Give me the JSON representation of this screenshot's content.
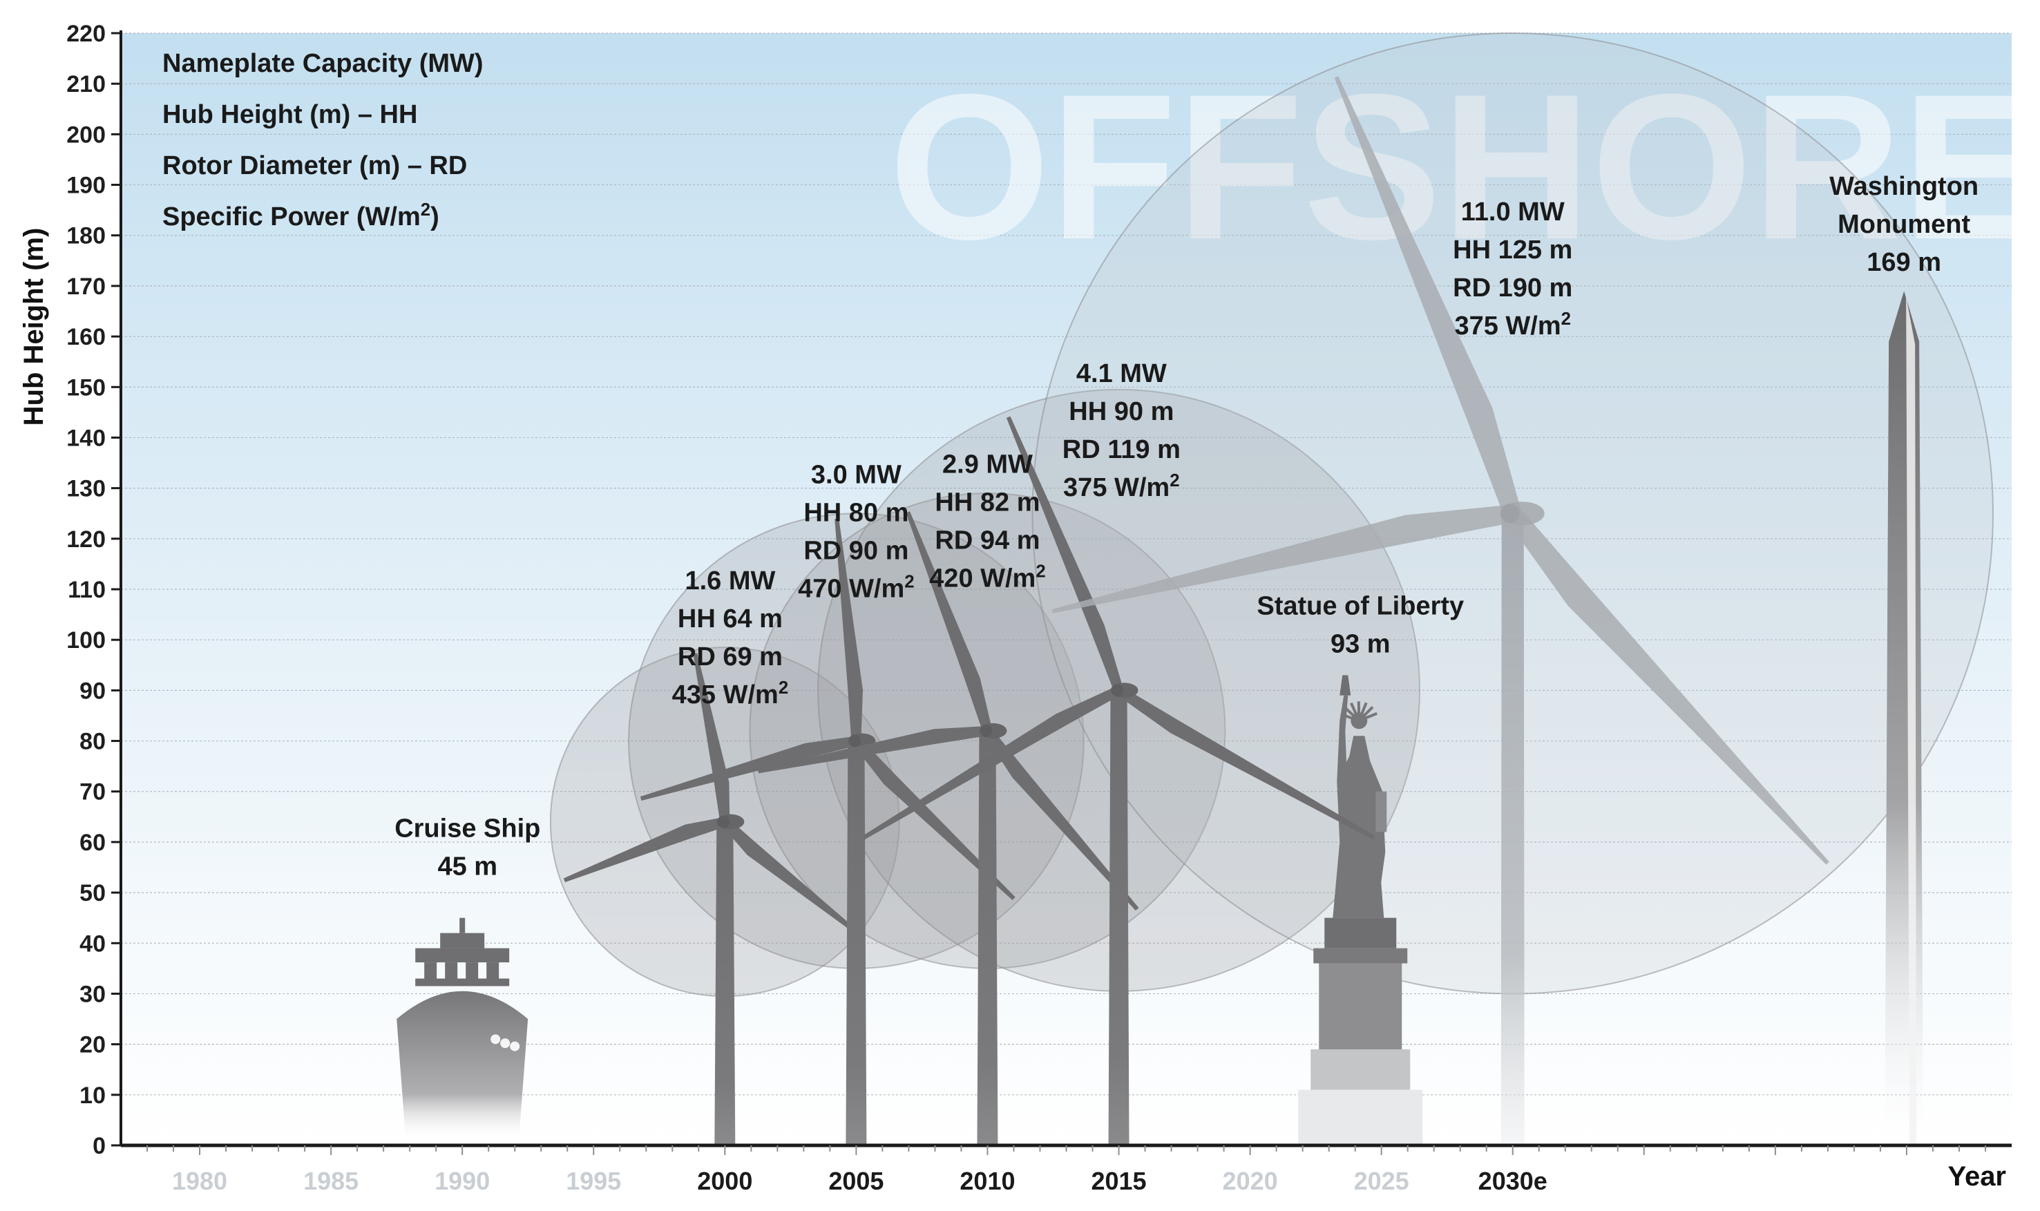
{
  "chart_data": {
    "type": "scatter",
    "ylabel": "Hub Height (m)",
    "xlabel": "Year",
    "ylim": [
      0,
      220
    ],
    "yticks": [
      0,
      10,
      20,
      30,
      40,
      50,
      60,
      70,
      80,
      90,
      100,
      110,
      120,
      130,
      140,
      150,
      160,
      170,
      180,
      190,
      200,
      210,
      220
    ],
    "xlim": [
      1977,
      2049
    ],
    "xticks": [
      {
        "value": 1980,
        "label": "1980",
        "emphasis": false
      },
      {
        "value": 1985,
        "label": "1985",
        "emphasis": false
      },
      {
        "value": 1990,
        "label": "1990",
        "emphasis": false
      },
      {
        "value": 1995,
        "label": "1995",
        "emphasis": false
      },
      {
        "value": 2000,
        "label": "2000",
        "emphasis": true
      },
      {
        "value": 2005,
        "label": "2005",
        "emphasis": true
      },
      {
        "value": 2010,
        "label": "2010",
        "emphasis": true
      },
      {
        "value": 2015,
        "label": "2015",
        "emphasis": true
      },
      {
        "value": 2020,
        "label": "2020",
        "emphasis": false
      },
      {
        "value": 2025,
        "label": "2025",
        "emphasis": false
      },
      {
        "value": 2030,
        "label": "2030e",
        "emphasis": true
      }
    ],
    "grid": true,
    "watermark": "OFFSHORE",
    "legend": {
      "placement": "top-left",
      "lines": [
        "Nameplate Capacity (MW)",
        "Hub Height (m) – HH",
        "Rotor Diameter (m) – RD",
        "Specific Power (W/m2)"
      ]
    },
    "turbines": [
      {
        "year": 2000,
        "hub_height": 64,
        "rotor_diameter": 69,
        "labels": [
          "1.6 MW",
          "HH 64 m",
          "RD 69 m",
          "435 W/m2"
        ],
        "label_anchor": {
          "year": 2000.2,
          "height": 110
        }
      },
      {
        "year": 2005,
        "hub_height": 80,
        "rotor_diameter": 90,
        "labels": [
          "3.0 MW",
          "HH 80 m",
          "RD 90 m",
          "470 W/m2"
        ],
        "label_anchor": {
          "year": 2005.0,
          "height": 131
        }
      },
      {
        "year": 2010,
        "hub_height": 82,
        "rotor_diameter": 94,
        "labels": [
          "2.9 MW",
          "HH 82 m",
          "RD 94 m",
          "420 W/m2"
        ],
        "label_anchor": {
          "year": 2010.0,
          "height": 133
        }
      },
      {
        "year": 2015,
        "hub_height": 90,
        "rotor_diameter": 119,
        "labels": [
          "4.1 MW",
          "HH 90 m",
          "RD 119 m",
          "375 W/m2"
        ],
        "label_anchor": {
          "year": 2015.1,
          "height": 151
        }
      },
      {
        "year": 2030,
        "hub_height": 125,
        "rotor_diameter": 190,
        "labels": [
          "11.0 MW",
          "HH 125 m",
          "RD 190 m",
          "375 W/m2"
        ],
        "label_anchor": {
          "year": 2030.0,
          "height": 183
        }
      }
    ],
    "landmarks": [
      {
        "name": "Cruise Ship",
        "height": 45,
        "year": 1990,
        "labels": [
          "Cruise Ship",
          "45 m"
        ]
      },
      {
        "name": "Statue of Liberty",
        "height": 93,
        "year": 2024.2,
        "labels": [
          "Statue of Liberty",
          "93 m"
        ]
      },
      {
        "name": "Washington Monument",
        "height": 169,
        "year": 2044.9,
        "labels": [
          "Washington",
          "Monument",
          "169 m"
        ]
      }
    ]
  }
}
